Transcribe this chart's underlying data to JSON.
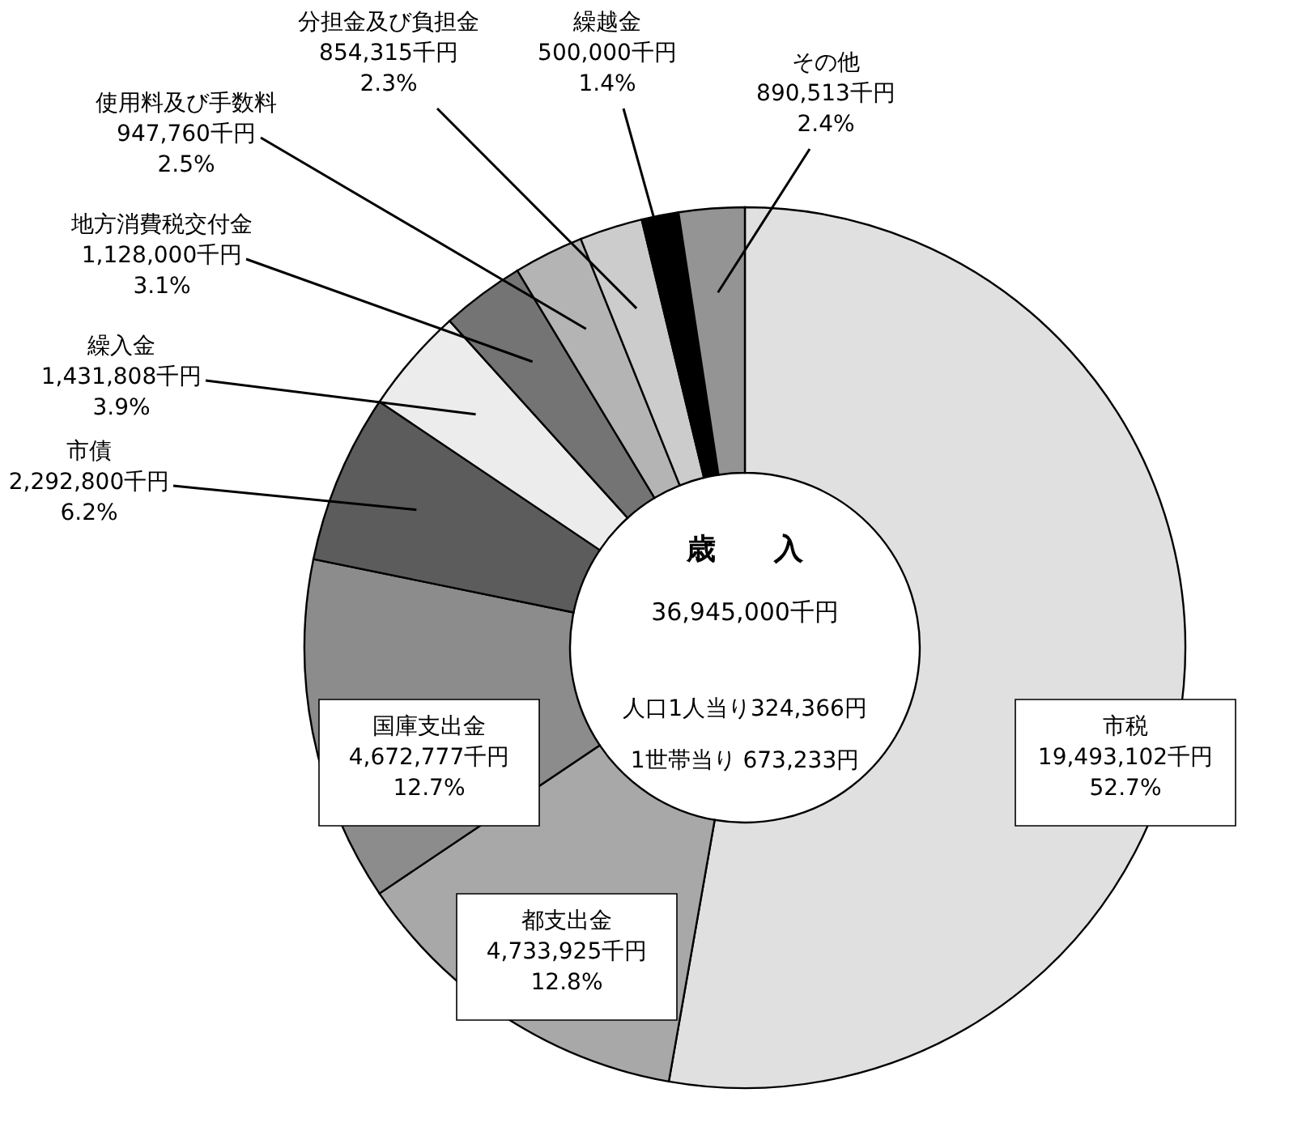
{
  "chart_data": {
    "type": "donut",
    "categories": [
      "市税",
      "都支出金",
      "国庫支出金",
      "市債",
      "繰入金",
      "地方消費税交付金",
      "使用料及び手数料",
      "分担金及び負担金",
      "繰越金",
      "その他"
    ],
    "values": [
      19493102,
      4733925,
      4672777,
      2292800,
      1431808,
      1128000,
      947760,
      854315,
      500000,
      890513
    ],
    "value_labels": [
      "19,493,102千円\n52.7%",
      "4,733,925千円\n12.8%",
      "4,672,777千円\n12.7%",
      "2,292,800千円\n6.2%",
      "1,431,808千円\n3.9%",
      "1,128,000千円\n3.1%",
      "947,760千円\n2.5%",
      "854,315千円\n2.3%",
      "500,000千円\n1.4%",
      "890,513千円\n2.4%"
    ],
    "colors": [
      "#e0e0e0",
      "#a8a8a8",
      "#8c8c8c",
      "#5c5c5c",
      "#ececec",
      "#747474",
      "#b4b4b4",
      "#cccccc",
      "#000000",
      "#949494"
    ],
    "annotations": [
      "歳　　入",
      "36,945,000千円",
      "人口1人当り324,366円",
      "1世帯当り 673,233円"
    ]
  }
}
